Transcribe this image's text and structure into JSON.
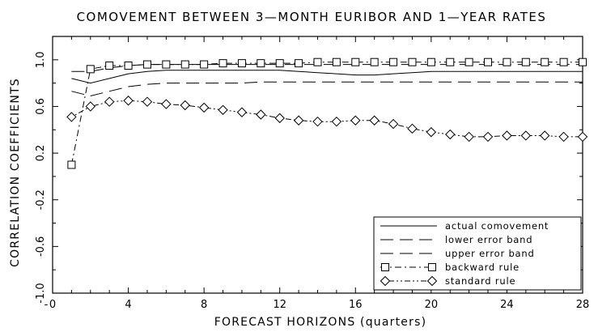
{
  "chart_data": {
    "type": "line",
    "title": "COMOVEMENT BETWEEN 3—MONTH EURIBOR AND 1—YEAR RATES",
    "xlabel": "FORECAST HORIZONS (quarters)",
    "ylabel": "CORRELATION COEFFICIENTS",
    "xlim": [
      0,
      28
    ],
    "ylim": [
      -1.0,
      1.2
    ],
    "xticks": [
      0,
      4,
      8,
      12,
      16,
      20,
      24,
      28
    ],
    "yticks": [
      -1.0,
      -0.6,
      -0.2,
      0.2,
      0.6,
      1.0
    ],
    "xtick_labels": [
      "0",
      "4",
      "8",
      "12",
      "16",
      "20",
      "24",
      "28"
    ],
    "ytick_labels": [
      "-1.0",
      "-0.6",
      "-0.2",
      "0.2",
      "0.6",
      "1.0"
    ],
    "x_extra_label": "-",
    "legend_position": "bottom-right",
    "grid": false,
    "series": [
      {
        "name": "actual comovement",
        "style": "solid",
        "marker": "none",
        "x": [
          1,
          2,
          3,
          4,
          5,
          6,
          7,
          8,
          9,
          10,
          11,
          12,
          13,
          14,
          15,
          16,
          17,
          18,
          19,
          20,
          21,
          22,
          23,
          24,
          25,
          26,
          27,
          28
        ],
        "values": [
          0.84,
          0.8,
          0.84,
          0.88,
          0.9,
          0.91,
          0.91,
          0.91,
          0.91,
          0.91,
          0.91,
          0.91,
          0.9,
          0.89,
          0.88,
          0.87,
          0.87,
          0.88,
          0.89,
          0.9,
          0.9,
          0.9,
          0.9,
          0.9,
          0.9,
          0.9,
          0.9,
          0.9
        ]
      },
      {
        "name": "lower error band",
        "style": "long-dash",
        "marker": "none",
        "x": [
          1,
          2,
          3,
          4,
          5,
          6,
          7,
          8,
          9,
          10,
          11,
          12,
          13,
          14,
          15,
          16,
          17,
          18,
          19,
          20,
          21,
          22,
          23,
          24,
          25,
          26,
          27,
          28
        ],
        "values": [
          0.73,
          0.69,
          0.73,
          0.77,
          0.79,
          0.8,
          0.8,
          0.8,
          0.8,
          0.8,
          0.81,
          0.81,
          0.81,
          0.81,
          0.81,
          0.81,
          0.81,
          0.81,
          0.81,
          0.81,
          0.81,
          0.81,
          0.81,
          0.81,
          0.81,
          0.81,
          0.81,
          0.81
        ]
      },
      {
        "name": "upper error band",
        "style": "long-dash",
        "marker": "none",
        "x": [
          1,
          2,
          3,
          4,
          5,
          6,
          7,
          8,
          9,
          10,
          11,
          12,
          13,
          14,
          15,
          16,
          17,
          18,
          19,
          20,
          21,
          22,
          23,
          24,
          25,
          26,
          27,
          28
        ],
        "values": [
          0.9,
          0.9,
          0.93,
          0.95,
          0.96,
          0.96,
          0.96,
          0.96,
          0.96,
          0.96,
          0.96,
          0.96,
          0.96,
          0.96,
          0.96,
          0.96,
          0.96,
          0.96,
          0.96,
          0.96,
          0.96,
          0.96,
          0.96,
          0.96,
          0.96,
          0.96,
          0.96,
          0.96
        ]
      },
      {
        "name": "backward rule",
        "style": "dash-dot",
        "marker": "square",
        "x": [
          1,
          2,
          3,
          4,
          5,
          6,
          7,
          8,
          9,
          10,
          11,
          12,
          13,
          14,
          15,
          16,
          17,
          18,
          19,
          20,
          21,
          22,
          23,
          24,
          25,
          26,
          27,
          28
        ],
        "values": [
          0.1,
          0.92,
          0.95,
          0.95,
          0.96,
          0.96,
          0.96,
          0.96,
          0.97,
          0.97,
          0.97,
          0.97,
          0.97,
          0.98,
          0.98,
          0.98,
          0.98,
          0.98,
          0.98,
          0.98,
          0.98,
          0.98,
          0.98,
          0.98,
          0.98,
          0.98,
          0.98,
          0.98
        ]
      },
      {
        "name": "standard rule",
        "style": "dot-dot-dash",
        "marker": "diamond",
        "x": [
          1,
          2,
          3,
          4,
          5,
          6,
          7,
          8,
          9,
          10,
          11,
          12,
          13,
          14,
          15,
          16,
          17,
          18,
          19,
          20,
          21,
          22,
          23,
          24,
          25,
          26,
          27,
          28
        ],
        "values": [
          0.51,
          0.6,
          0.64,
          0.65,
          0.64,
          0.62,
          0.61,
          0.59,
          0.57,
          0.55,
          0.53,
          0.5,
          0.48,
          0.47,
          0.47,
          0.48,
          0.48,
          0.45,
          0.41,
          0.38,
          0.36,
          0.34,
          0.34,
          0.35,
          0.35,
          0.35,
          0.34,
          0.34
        ]
      }
    ]
  }
}
